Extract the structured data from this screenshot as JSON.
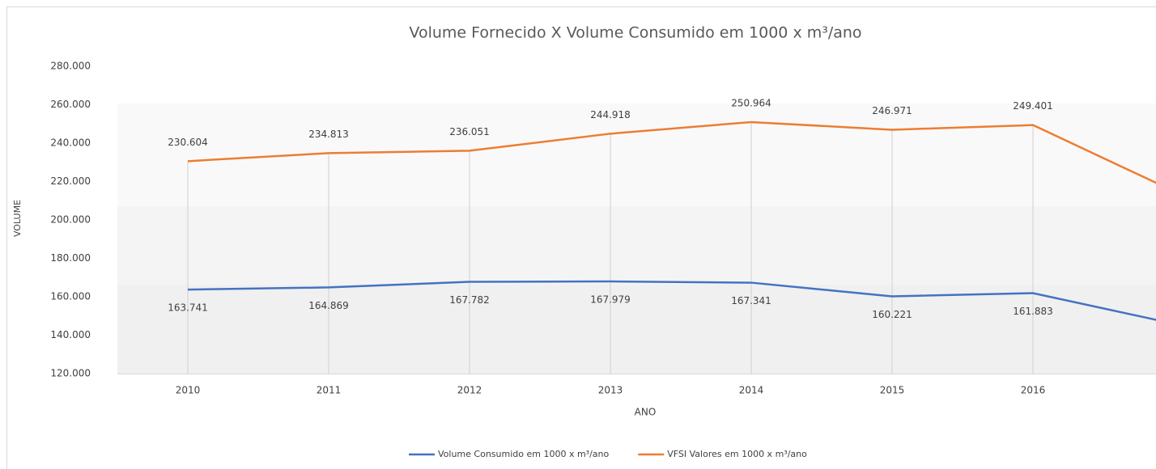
{
  "chart_data": {
    "type": "line",
    "title": "Volume Fornecido  X  Volume Consumido   em 1000 x m³/ano",
    "x_label": "ANO",
    "y_label": "VOLUME",
    "categories": [
      "2010",
      "2011",
      "2012",
      "2013",
      "2014",
      "2015",
      "2016",
      null
    ],
    "series": [
      {
        "name": "Volume Consumido em 1000 x m³/ano",
        "color": "#4472c4",
        "values": [
          163741,
          164869,
          167782,
          167979,
          167341,
          160221,
          161883,
          146000
        ],
        "value_labels": [
          "163.741",
          "164.869",
          "167.782",
          "167.979",
          "167.341",
          "160.221",
          "161.883",
          null
        ]
      },
      {
        "name": "VFSI Valores em 1000 x m³/ano",
        "color": "#ed7d31",
        "values": [
          230604,
          234813,
          236051,
          244918,
          250964,
          246971,
          249401,
          215000
        ],
        "value_labels": [
          "230.604",
          "234.813",
          "236.051",
          "244.918",
          "250.964",
          "246.971",
          "249.401",
          null
        ]
      }
    ],
    "ylim": [
      120000,
      280000
    ],
    "yticks": [
      {
        "value": 120000,
        "label": "120.000"
      },
      {
        "value": 140000,
        "label": "140.000"
      },
      {
        "value": 160000,
        "label": "160.000"
      },
      {
        "value": 180000,
        "label": "180.000"
      },
      {
        "value": 200000,
        "label": "200.000"
      },
      {
        "value": 220000,
        "label": "220.000"
      },
      {
        "value": 240000,
        "label": "240.000"
      },
      {
        "value": 260000,
        "label": "260.000"
      },
      {
        "value": 280000,
        "label": "280.000"
      }
    ],
    "grid": false,
    "legend": "bottom"
  }
}
